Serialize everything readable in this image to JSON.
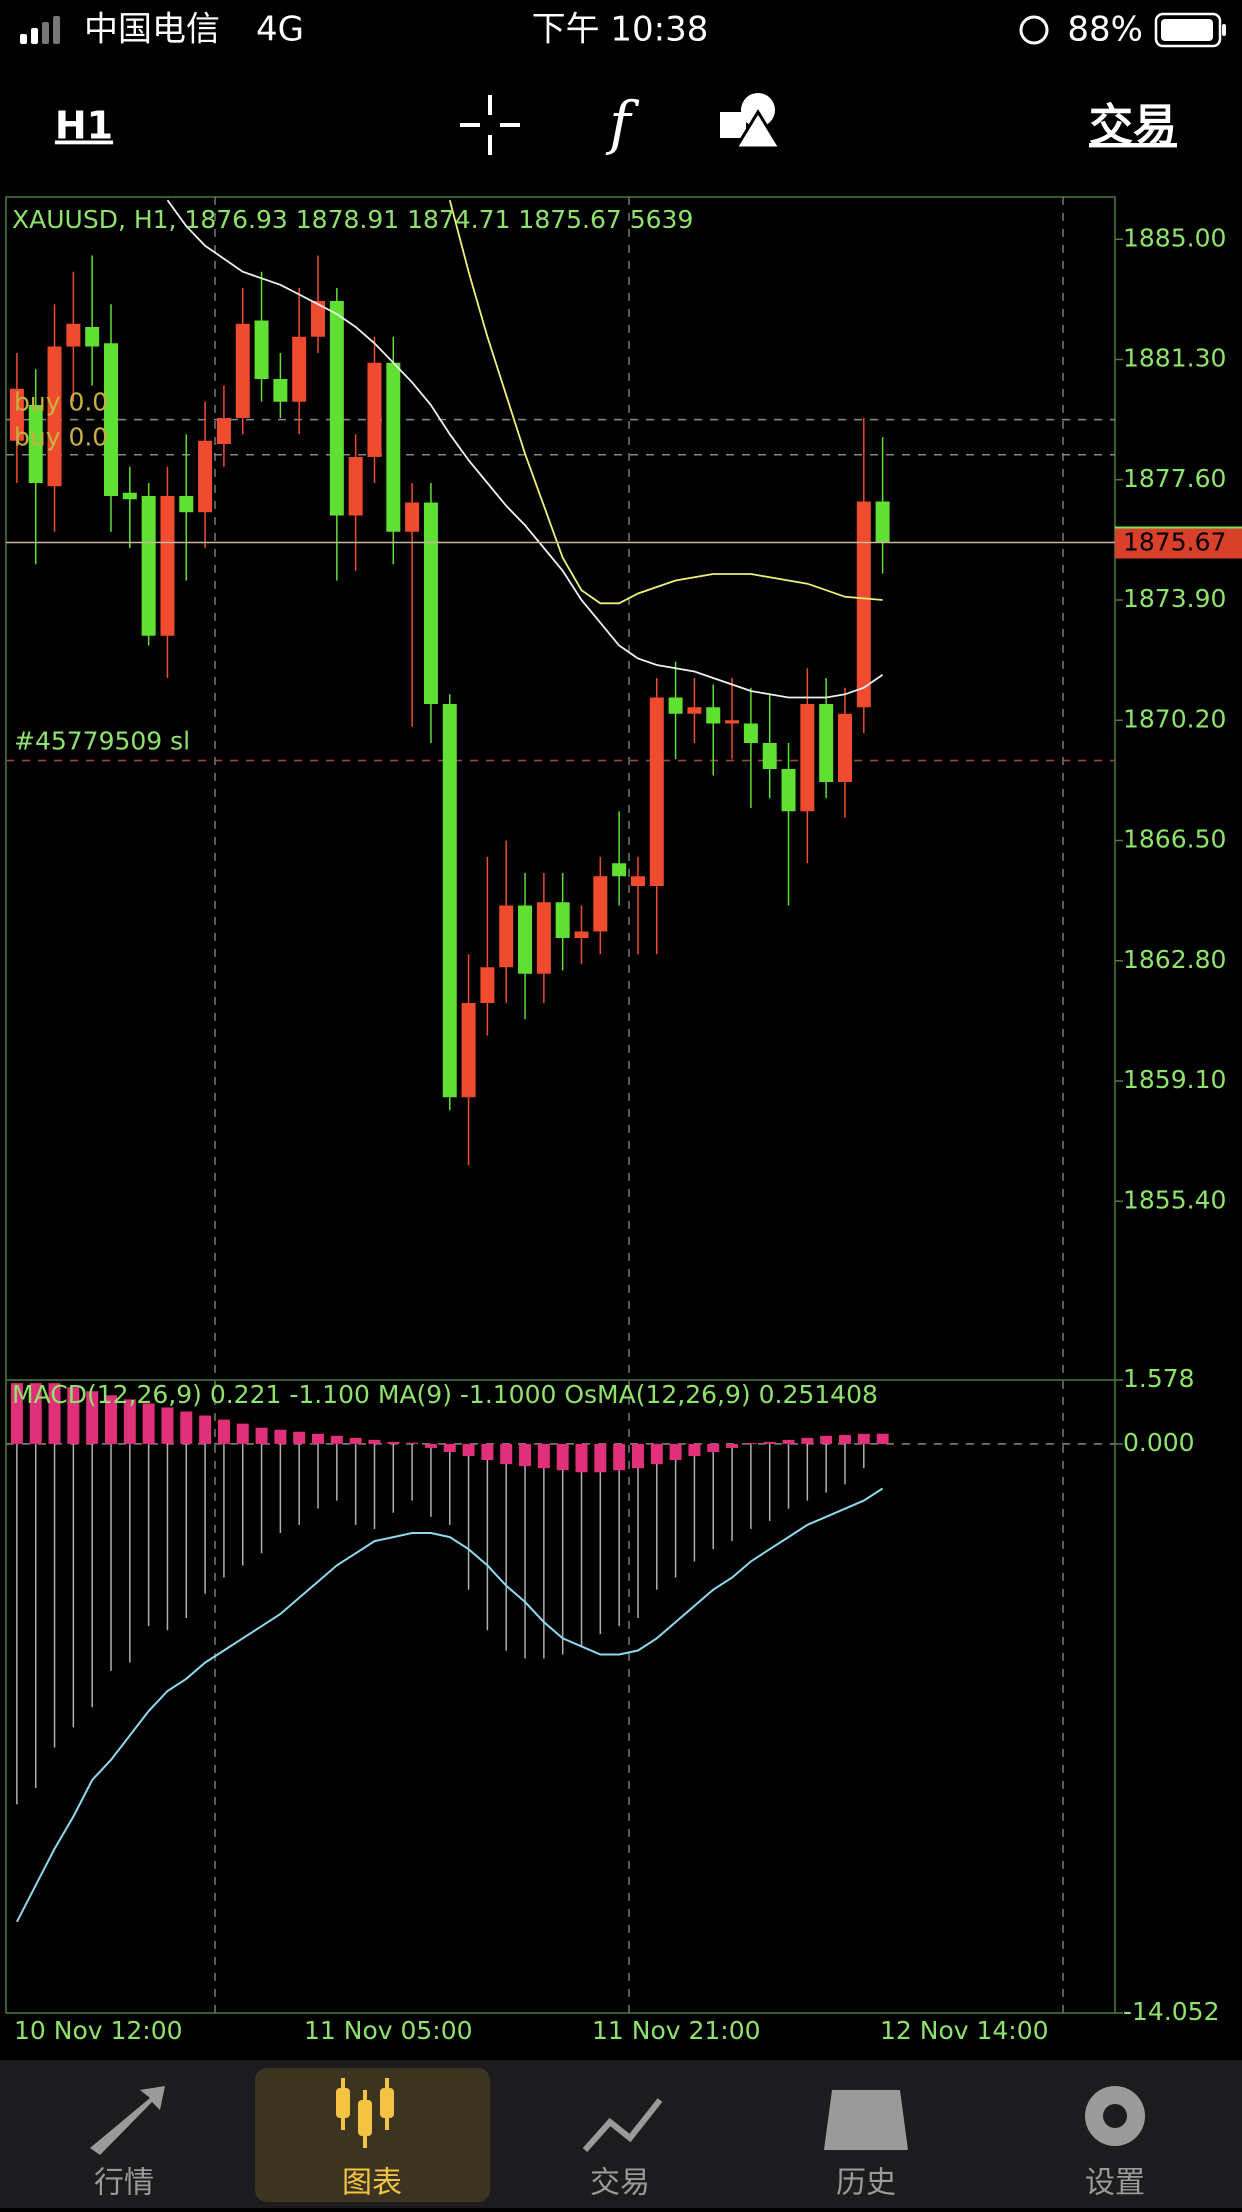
{
  "status_bar": {
    "carrier": "中国电信",
    "network": "4G",
    "time": "下午 10:38",
    "battery": "88%"
  },
  "toolbar": {
    "timeframe": "H1",
    "trade_button": "交易"
  },
  "chart": {
    "type": "candlestick",
    "header": "XAUUSD, H1, 1876.93 1878.91 1874.71 1875.67 5639",
    "ylim": [
      1849.9,
      1886.3
    ],
    "yticks": [
      {
        "value": 1885,
        "label": "1885.00"
      },
      {
        "value": 1881.3,
        "label": "1881.30"
      },
      {
        "value": 1877.6,
        "label": "1877.60"
      },
      {
        "value": 1873.9,
        "label": "1873.90"
      },
      {
        "value": 1870.2,
        "label": "1870.20"
      },
      {
        "value": 1866.5,
        "label": "1866.50"
      },
      {
        "value": 1862.8,
        "label": "1862.80"
      },
      {
        "value": 1859.1,
        "label": "1859.10"
      },
      {
        "value": 1855.4,
        "label": "1855.40"
      }
    ],
    "current_price": {
      "value": 1875.67,
      "label": "1875.67"
    },
    "up_color": "#ef4b2f",
    "down_color": "#5fe033",
    "candles": {
      "open": [
        1878.8,
        1879.9,
        1877.4,
        1881.7,
        1882.3,
        1881.8,
        1877.2,
        1877.1,
        1872.8,
        1877.1,
        1876.6,
        1878.7,
        1879.5,
        1882.5,
        1880.7,
        1880.0,
        1882.0,
        1883.1,
        1876.5,
        1878.3,
        1881.2,
        1876.0,
        1876.9,
        1870.7,
        1858.6,
        1861.5,
        1862.6,
        1864.5,
        1862.4,
        1864.6,
        1863.5,
        1863.7,
        1865.8,
        1865.1,
        1865.1,
        1870.9,
        1870.4,
        1870.6,
        1870.1,
        1870.1,
        1869.5,
        1868.7,
        1867.4,
        1870.7,
        1868.3,
        1870.6,
        1876.93
      ],
      "high": [
        1881.5,
        1881.0,
        1883.0,
        1884.0,
        1884.5,
        1883.0,
        1878.0,
        1877.5,
        1878.0,
        1879.0,
        1880.0,
        1880.5,
        1883.5,
        1884.0,
        1881.5,
        1883.5,
        1884.5,
        1883.5,
        1879.0,
        1882.0,
        1882.0,
        1877.5,
        1877.5,
        1871.0,
        1863.0,
        1866.0,
        1866.5,
        1865.5,
        1865.5,
        1865.5,
        1864.5,
        1866.0,
        1867.4,
        1866.0,
        1871.5,
        1872.0,
        1871.5,
        1871.3,
        1871.5,
        1871.2,
        1871.0,
        1869.5,
        1871.8,
        1871.5,
        1871.2,
        1879.5,
        1878.91
      ],
      "low": [
        1877.5,
        1875.0,
        1876.0,
        1880.0,
        1880.5,
        1876.0,
        1875.5,
        1872.5,
        1871.5,
        1874.5,
        1875.5,
        1878.0,
        1879.0,
        1880.0,
        1879.5,
        1879.0,
        1881.5,
        1874.5,
        1874.8,
        1877.5,
        1875.0,
        1870.0,
        1869.5,
        1858.2,
        1856.5,
        1860.5,
        1861.5,
        1861.0,
        1861.5,
        1862.5,
        1862.7,
        1863.0,
        1864.5,
        1863.0,
        1863.0,
        1869.0,
        1869.5,
        1868.5,
        1869.0,
        1867.5,
        1867.8,
        1864.5,
        1865.8,
        1867.8,
        1867.2,
        1869.8,
        1874.71
      ],
      "close": [
        1880.4,
        1877.5,
        1881.7,
        1882.4,
        1881.7,
        1877.1,
        1877.0,
        1872.8,
        1877.1,
        1876.6,
        1878.8,
        1879.5,
        1882.4,
        1880.7,
        1880.0,
        1882.0,
        1883.1,
        1876.5,
        1878.3,
        1881.2,
        1876.0,
        1876.9,
        1870.7,
        1858.6,
        1861.5,
        1862.6,
        1864.5,
        1862.4,
        1864.6,
        1863.5,
        1863.7,
        1865.4,
        1865.4,
        1865.4,
        1870.9,
        1870.4,
        1870.6,
        1870.1,
        1870.2,
        1869.5,
        1868.7,
        1867.4,
        1870.7,
        1868.3,
        1870.4,
        1876.93,
        1875.67
      ]
    },
    "ma_fast": {
      "color": "#f0f0f0",
      "values": [
        null,
        null,
        null,
        null,
        null,
        null,
        null,
        null,
        1886.2,
        1885.4,
        1884.8,
        1884.4,
        1884.0,
        1883.8,
        1883.6,
        1883.3,
        1883.0,
        1882.7,
        1882.3,
        1881.8,
        1881.2,
        1880.6,
        1879.9,
        1879.0,
        1878.2,
        1877.5,
        1876.8,
        1876.2,
        1875.5,
        1874.8,
        1873.9,
        1873.2,
        1872.5,
        1872.1,
        1871.9,
        1871.8,
        1871.7,
        1871.5,
        1871.3,
        1871.1,
        1871.0,
        1870.9,
        1870.9,
        1870.9,
        1871.0,
        1871.2,
        1871.6
      ]
    },
    "ma_slow": {
      "color": "#f0f07a",
      "values": [
        null,
        null,
        null,
        null,
        null,
        null,
        null,
        null,
        null,
        null,
        null,
        null,
        null,
        null,
        null,
        null,
        null,
        null,
        null,
        null,
        null,
        null,
        null,
        1886.2,
        1884.0,
        1882.0,
        1880.2,
        1878.4,
        1876.8,
        1875.2,
        1874.2,
        1873.8,
        1873.8,
        1874.1,
        1874.3,
        1874.5,
        1874.6,
        1874.7,
        1874.7,
        1874.7,
        1874.6,
        1874.5,
        1874.4,
        1874.2,
        1874.0,
        1873.95,
        1873.9
      ]
    },
    "order_labels": [
      "buy 0.0",
      "buy 0.0"
    ],
    "order_levels": [
      1879.45,
      1878.37
    ],
    "sl_label": "#45779509 sl",
    "sl_level": 1868.96
  },
  "macd": {
    "header": "MACD(12,26,9) 0.221 -1.100 MA(9) -1.1000 OsMA(12,26,9) 0.251408",
    "ylim": [
      -14.052,
      1.578
    ],
    "yticks": [
      {
        "value": 1.578,
        "label": "1.578"
      },
      {
        "value": 0,
        "label": "0.000"
      },
      {
        "value": -14.052,
        "label": "-14.052"
      }
    ],
    "macd": [
      -8.9,
      -8.5,
      -7.5,
      -7.0,
      -6.5,
      -5.6,
      -5.4,
      -4.5,
      -4.6,
      -4.3,
      -3.7,
      -3.3,
      -3.0,
      -2.7,
      -2.2,
      -2.0,
      -1.6,
      -1.4,
      -2.0,
      -2.1,
      -1.7,
      -1.4,
      -1.8,
      -2.0,
      -3.6,
      -4.6,
      -5.1,
      -5.3,
      -5.3,
      -5.2,
      -5.0,
      -4.7,
      -4.5,
      -4.3,
      -3.6,
      -3.3,
      -2.9,
      -2.6,
      -2.4,
      -2.1,
      -1.9,
      -1.6,
      -1.4,
      -1.2,
      -1.0,
      -0.6,
      0.221
    ],
    "signal": [
      -11.8,
      -10.9,
      -10.0,
      -9.2,
      -8.3,
      -7.8,
      -7.2,
      -6.6,
      -6.1,
      -5.8,
      -5.4,
      -5.1,
      -4.8,
      -4.5,
      -4.2,
      -3.8,
      -3.4,
      -3.0,
      -2.7,
      -2.4,
      -2.3,
      -2.2,
      -2.2,
      -2.3,
      -2.6,
      -3.0,
      -3.5,
      -3.9,
      -4.4,
      -4.8,
      -5.0,
      -5.2,
      -5.2,
      -5.1,
      -4.8,
      -4.4,
      -4.0,
      -3.6,
      -3.3,
      -2.9,
      -2.6,
      -2.3,
      -2.0,
      -1.8,
      -1.6,
      -1.4,
      -1.1
    ],
    "osma": [
      1.5,
      1.5,
      1.5,
      1.4,
      1.3,
      1.2,
      1.1,
      1.0,
      0.9,
      0.8,
      0.7,
      0.6,
      0.5,
      0.4,
      0.35,
      0.3,
      0.25,
      0.2,
      0.15,
      0.1,
      0.05,
      0.03,
      -0.1,
      -0.2,
      -0.3,
      -0.4,
      -0.5,
      -0.55,
      -0.6,
      -0.65,
      -0.7,
      -0.7,
      -0.65,
      -0.6,
      -0.5,
      -0.4,
      -0.3,
      -0.2,
      -0.1,
      0.02,
      0.05,
      0.1,
      0.15,
      0.2,
      0.22,
      0.25,
      0.251408
    ]
  },
  "x_labels": [
    "10 Nov 12:00",
    "11 Nov 05:00",
    "11 Nov 21:00",
    "12 Nov 14:00"
  ],
  "tabs": [
    "行情",
    "图表",
    "交易",
    "历史",
    "设置"
  ]
}
